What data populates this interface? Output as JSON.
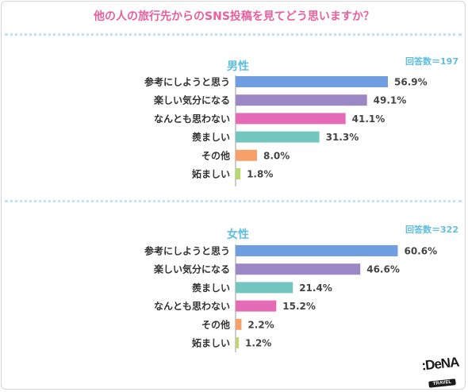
{
  "title": "他の人の旅行先からのSNS投稿を見てどう思いますか？",
  "logo": {
    "brand": ":DeNA",
    "sub": "TRAVEL"
  },
  "chart_data": [
    {
      "type": "bar",
      "orientation": "horizontal",
      "title": "男性",
      "count_label": "回答数＝197",
      "categories": [
        "参考にしようと思う",
        "楽しい気分になる",
        "なんとも思わない",
        "羨ましい",
        "その他",
        "妬ましい"
      ],
      "values": [
        56.9,
        49.1,
        41.1,
        31.3,
        8.0,
        1.8
      ],
      "value_labels": [
        "56.9%",
        "49.1%",
        "41.1%",
        "31.3%",
        "8.0%",
        "1.8%"
      ],
      "colors": [
        "#6f9fe0",
        "#9b86c6",
        "#e66bb6",
        "#72c6bd",
        "#f7a06a",
        "#b6d96a"
      ],
      "xlim": [
        0,
        100
      ]
    },
    {
      "type": "bar",
      "orientation": "horizontal",
      "title": "女性",
      "count_label": "回答数＝322",
      "categories": [
        "参考にしようと思う",
        "楽しい気分になる",
        "羨ましい",
        "なんとも思わない",
        "その他",
        "妬ましい"
      ],
      "values": [
        60.6,
        46.6,
        21.4,
        15.2,
        2.2,
        1.2
      ],
      "value_labels": [
        "60.6%",
        "46.6%",
        "21.4%",
        "15.2%",
        "2.2%",
        "1.2%"
      ],
      "colors": [
        "#6f9fe0",
        "#9b86c6",
        "#72c6bd",
        "#e66bb6",
        "#f7a06a",
        "#b6d96a"
      ],
      "xlim": [
        0,
        100
      ]
    }
  ]
}
